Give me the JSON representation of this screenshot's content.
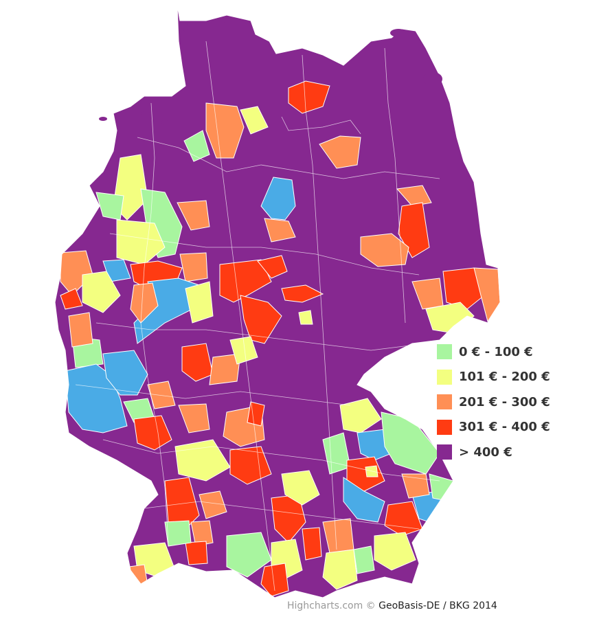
{
  "legend": {
    "items": [
      {
        "label": "0 € - 100 €",
        "color": "#a8f59f"
      },
      {
        "label": "101 € - 200 €",
        "color": "#f3ff80"
      },
      {
        "label": "201 € - 300 €",
        "color": "#ff8f55"
      },
      {
        "label": "301 € - 400 €",
        "color": "#ff3b12"
      },
      {
        "label": "> 400 €",
        "color": "#862890"
      }
    ],
    "extra_colors": {
      "blue": "#4aabe6"
    }
  },
  "credits": {
    "brand": "Highcharts.com",
    "copyright": "©",
    "source": "GeoBasis-DE / BKG 2014"
  }
}
